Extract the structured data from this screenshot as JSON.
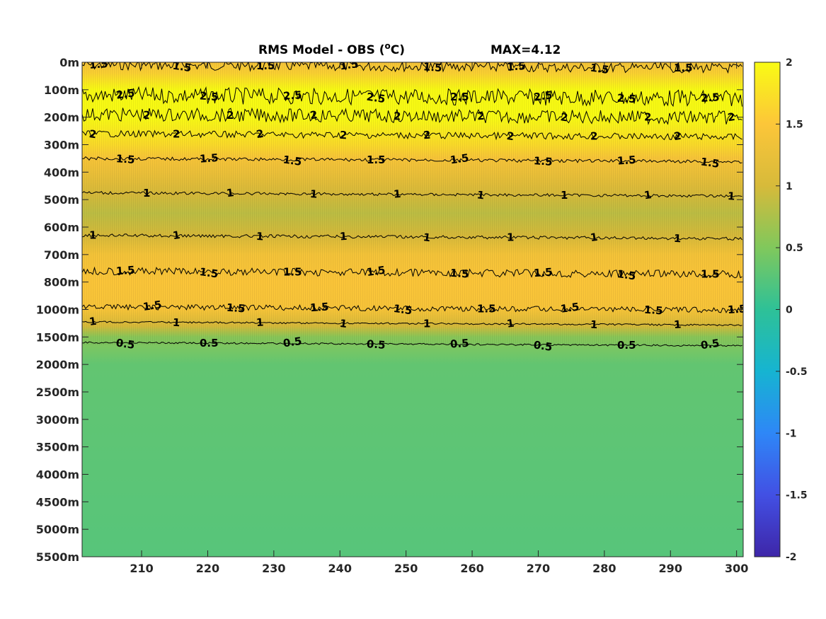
{
  "chart_data": {
    "type": "heatmap",
    "title": {
      "main": "RMS Model - OBS (",
      "sup": "o",
      "unit": "C)",
      "max_label": "MAX=4.12"
    },
    "xlabel": "",
    "ylabel": "",
    "xlim": [
      201,
      301
    ],
    "x_ticks": [
      210,
      220,
      230,
      240,
      250,
      260,
      270,
      280,
      290,
      300
    ],
    "y_tick_labels": [
      "0m",
      "100m",
      "200m",
      "300m",
      "400m",
      "500m",
      "600m",
      "700m",
      "800m",
      "1000m",
      "1500m",
      "2000m",
      "2500m",
      "3000m",
      "3500m",
      "4000m",
      "4500m",
      "5000m",
      "5500m"
    ],
    "colorbar": {
      "clim": [
        -2,
        2
      ],
      "ticks": [
        2,
        1.5,
        1,
        0.5,
        0,
        -0.5,
        -1,
        -1.5,
        -2
      ],
      "colormap": [
        "#3e26a8",
        "#4250e4",
        "#2e87f7",
        "#16b4d1",
        "#2ec197",
        "#80c85c",
        "#d7ba3a",
        "#fcc639",
        "#f9fb14"
      ]
    },
    "depth_profile": [
      {
        "depth_index": 0,
        "value": 1.4
      },
      {
        "depth_index": 0.4,
        "value": 1.6
      },
      {
        "depth_index": 1,
        "value": 2.2
      },
      {
        "depth_index": 2,
        "value": 2.0
      },
      {
        "depth_index": 3,
        "value": 1.7
      },
      {
        "depth_index": 3.5,
        "value": 1.45
      },
      {
        "depth_index": 4,
        "value": 1.3
      },
      {
        "depth_index": 4.8,
        "value": 1.0
      },
      {
        "depth_index": 5.5,
        "value": 0.85
      },
      {
        "depth_index": 6.3,
        "value": 1.0
      },
      {
        "depth_index": 7,
        "value": 1.4
      },
      {
        "depth_index": 8,
        "value": 1.5
      },
      {
        "depth_index": 9,
        "value": 1.45
      },
      {
        "depth_index": 9.6,
        "value": 1.0
      },
      {
        "depth_index": 10,
        "value": 0.55
      },
      {
        "depth_index": 11,
        "value": 0.32
      },
      {
        "depth_index": 13,
        "value": 0.3
      },
      {
        "depth_index": 18,
        "value": 0.25
      }
    ],
    "contours": [
      {
        "level": "1.5",
        "depth_index": 0.1,
        "noise": 0.18
      },
      {
        "level": "2.5",
        "depth_index": 1.2,
        "noise": 0.3
      },
      {
        "level": "2",
        "depth_index": 1.9,
        "noise": 0.25
      },
      {
        "level": "2",
        "depth_index": 2.6,
        "noise": 0.12
      },
      {
        "level": "1.5",
        "depth_index": 3.5,
        "noise": 0.06
      },
      {
        "level": "1",
        "depth_index": 4.75,
        "noise": 0.05
      },
      {
        "level": "1",
        "depth_index": 6.3,
        "noise": 0.06
      },
      {
        "level": "1.5",
        "depth_index": 7.6,
        "noise": 0.14
      },
      {
        "level": "1.5",
        "depth_index": 8.9,
        "noise": 0.1
      },
      {
        "level": "1",
        "depth_index": 9.45,
        "noise": 0.03
      },
      {
        "level": "0.5",
        "depth_index": 10.2,
        "noise": 0.03
      }
    ]
  }
}
